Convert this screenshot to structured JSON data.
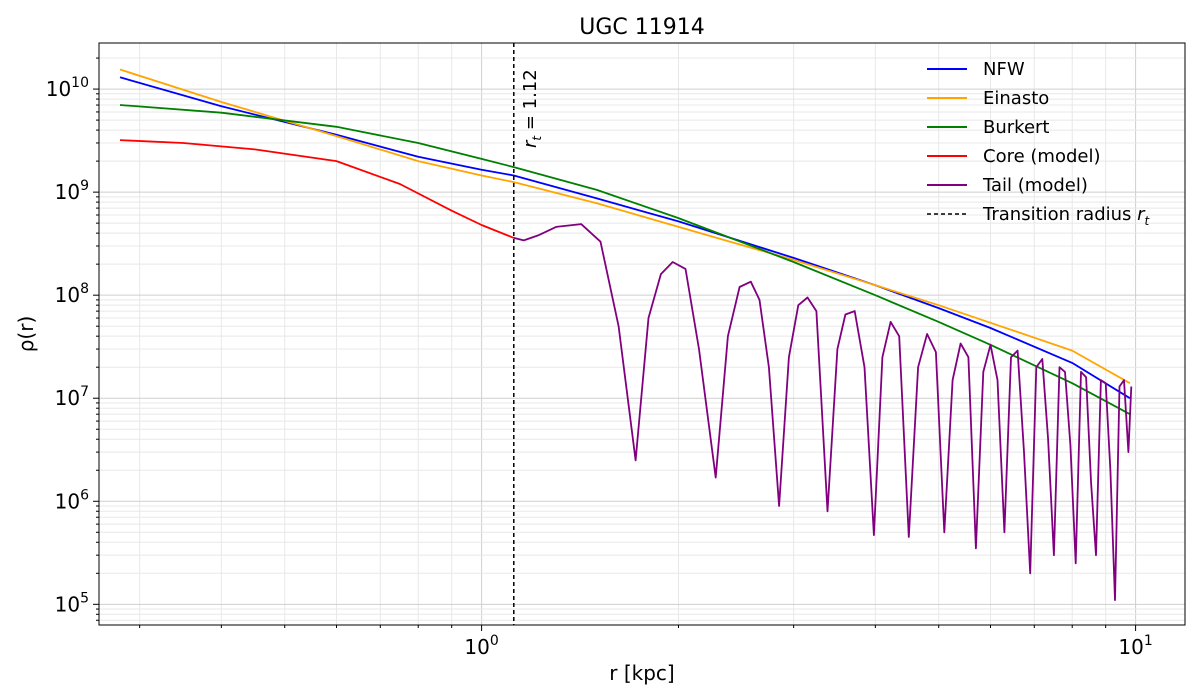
{
  "chart_data": {
    "type": "line",
    "title": "UGC 11914",
    "xlabel": "r [kpc]",
    "ylabel": "ρ(r)",
    "xscale": "log",
    "yscale": "log",
    "xlim": [
      0.26,
      11.9
    ],
    "ylim": [
      63000,
      28000000000.0
    ],
    "grid": "major and minor",
    "legend_position": "top-right",
    "x_ticks": [
      {
        "value": 1,
        "base": "10",
        "exp": "0"
      },
      {
        "value": 10,
        "base": "10",
        "exp": "1"
      }
    ],
    "y_ticks": [
      {
        "value": 100000,
        "base": "10",
        "exp": "5"
      },
      {
        "value": 1000000,
        "base": "10",
        "exp": "6"
      },
      {
        "value": 10000000,
        "base": "10",
        "exp": "7"
      },
      {
        "value": 100000000,
        "base": "10",
        "exp": "8"
      },
      {
        "value": 1000000000,
        "base": "10",
        "exp": "9"
      },
      {
        "value": 10000000000,
        "base": "10",
        "exp": "10"
      }
    ],
    "transition_radius": 1.12,
    "annotation": {
      "symbol": "r",
      "subscript": "t",
      "text": " = 1.12"
    },
    "series": [
      {
        "name": "NFW",
        "color": "#0000ff",
        "dash": "",
        "x": [
          0.28,
          0.4,
          0.6,
          0.8,
          1.0,
          1.12,
          1.5,
          2.0,
          3.0,
          4.0,
          5.0,
          6.0,
          8.0,
          9.8
        ],
        "y": [
          13000000000.0,
          6800000000.0,
          3600000000.0,
          2200000000.0,
          1650000000.0,
          1450000000.0,
          870000000.0,
          520000000.0,
          230000000.0,
          125000000.0,
          75000000.0,
          48000000.0,
          22000000.0,
          10000000.0
        ]
      },
      {
        "name": "Einasto",
        "color": "#ffa500",
        "dash": "",
        "x": [
          0.28,
          0.4,
          0.6,
          0.8,
          1.0,
          1.12,
          1.5,
          2.0,
          3.0,
          4.0,
          5.0,
          6.0,
          8.0,
          9.8
        ],
        "y": [
          15500000000.0,
          7500000000.0,
          3500000000.0,
          2000000000.0,
          1450000000.0,
          1250000000.0,
          780000000.0,
          460000000.0,
          220000000.0,
          125000000.0,
          80000000.0,
          54000000.0,
          29000000.0,
          14000000.0
        ]
      },
      {
        "name": "Burkert",
        "color": "#008000",
        "dash": "",
        "x": [
          0.28,
          0.4,
          0.6,
          0.8,
          1.0,
          1.12,
          1.5,
          2.0,
          3.0,
          4.0,
          5.0,
          6.0,
          8.0,
          9.8
        ],
        "y": [
          7000000000.0,
          5900000000.0,
          4300000000.0,
          3000000000.0,
          2100000000.0,
          1750000000.0,
          1050000000.0,
          560000000.0,
          210000000.0,
          100000000.0,
          55000000.0,
          33000000.0,
          14000000.0,
          7000000.0
        ]
      },
      {
        "name": "Core (model)",
        "color": "#ff0000",
        "dash": "",
        "x": [
          0.28,
          0.35,
          0.45,
          0.6,
          0.75,
          0.9,
          1.0,
          1.12
        ],
        "y": [
          3200000000.0,
          3000000000.0,
          2600000000.0,
          2000000000.0,
          1200000000.0,
          660000000.0,
          480000000.0,
          360000000.0
        ]
      },
      {
        "name": "Tail (model)",
        "color": "#800080",
        "dash": "",
        "x": [
          1.12,
          1.16,
          1.22,
          1.3,
          1.42,
          1.52,
          1.62,
          1.72,
          1.8,
          1.88,
          1.96,
          2.05,
          2.15,
          2.28,
          2.38,
          2.48,
          2.58,
          2.66,
          2.75,
          2.85,
          2.95,
          3.05,
          3.15,
          3.25,
          3.38,
          3.5,
          3.6,
          3.72,
          3.85,
          3.98,
          4.1,
          4.22,
          4.35,
          4.5,
          4.65,
          4.8,
          4.95,
          5.1,
          5.25,
          5.4,
          5.55,
          5.7,
          5.85,
          6.0,
          6.15,
          6.3,
          6.45,
          6.6,
          6.75,
          6.9,
          7.05,
          7.2,
          7.35,
          7.5,
          7.65,
          7.8,
          7.95,
          8.1,
          8.25,
          8.4,
          8.55,
          8.7,
          8.85,
          9.0,
          9.15,
          9.3,
          9.45,
          9.6,
          9.75,
          9.85
        ],
        "y": [
          360000000.0,
          340000000.0,
          380000000.0,
          460000000.0,
          490000000.0,
          330000000.0,
          50000000.0,
          2500000.0,
          60000000.0,
          160000000.0,
          210000000.0,
          180000000.0,
          30000000.0,
          1700000.0,
          40000000.0,
          120000000.0,
          135000000.0,
          90000000.0,
          20000000.0,
          900000.0,
          25000000.0,
          80000000.0,
          95000000.0,
          70000000.0,
          800000.0,
          30000000.0,
          65000000.0,
          70000000.0,
          20000000.0,
          470000.0,
          25000000.0,
          55000000.0,
          40000000.0,
          450000.0,
          20000000.0,
          42000000.0,
          28000000.0,
          500000.0,
          15000000.0,
          34000000.0,
          25000000.0,
          350000.0,
          18000000.0,
          33000000.0,
          15000000.0,
          500000.0,
          25000000.0,
          29000000.0,
          3000000.0,
          200000.0,
          20000000.0,
          24000000.0,
          4000000.0,
          300000.0,
          20000000.0,
          18000000.0,
          3500000.0,
          250000.0,
          18000000.0,
          16000000.0,
          1500000.0,
          300000.0,
          15000000.0,
          14000000.0,
          2000000.0,
          110000.0,
          13000000.0,
          15000000.0,
          3000000.0,
          13000000.0
        ]
      },
      {
        "name": "Transition radius ",
        "color": "#000000",
        "dash": "4,3",
        "legend_symbol": "r",
        "legend_subscript": "t"
      }
    ]
  }
}
